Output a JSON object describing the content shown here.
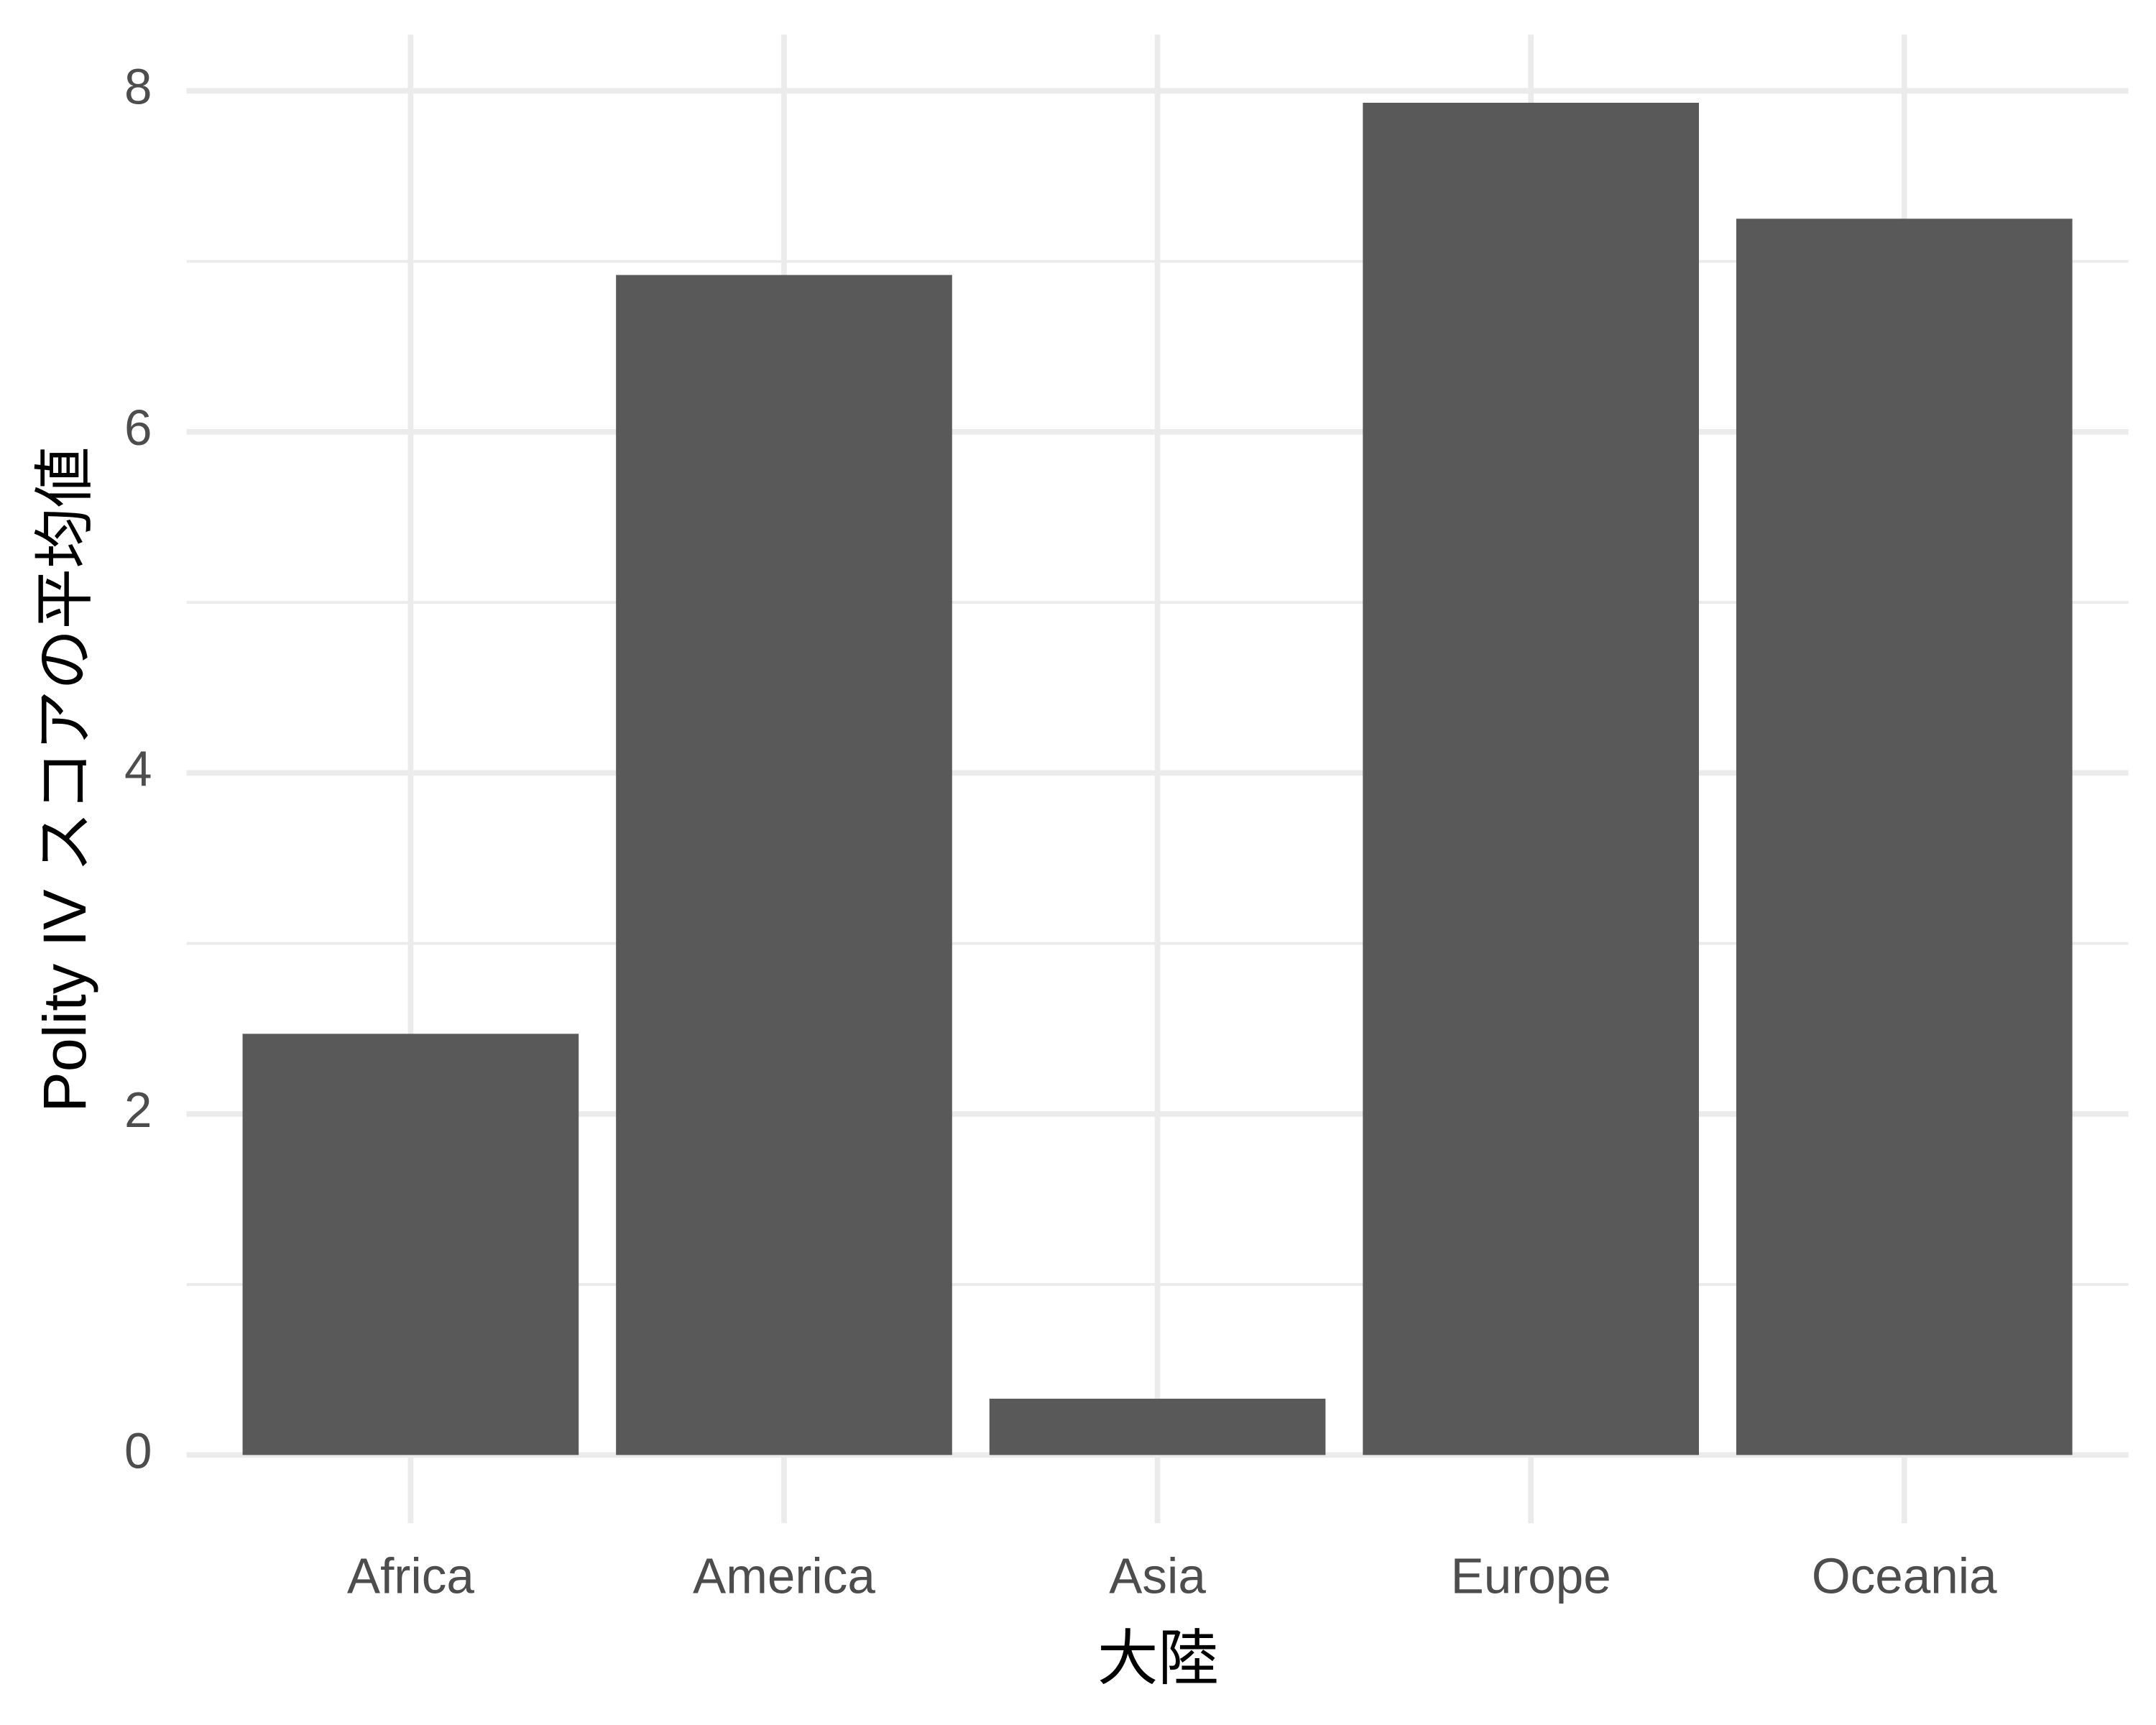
{
  "chart_data": {
    "type": "bar",
    "x_label": "大陸",
    "y_label": "Polity IV スコアの平均値",
    "categories": [
      "Africa",
      "America",
      "Asia",
      "Europe",
      "Oceania"
    ],
    "values": [
      2.47,
      6.92,
      0.33,
      7.93,
      7.25
    ],
    "color": "#595959",
    "ylim": [
      -0.4,
      8.33
    ],
    "yticks": [
      0,
      2,
      4,
      6,
      8
    ],
    "minor_yticks": [
      1,
      3,
      5,
      7
    ],
    "grid": true
  }
}
